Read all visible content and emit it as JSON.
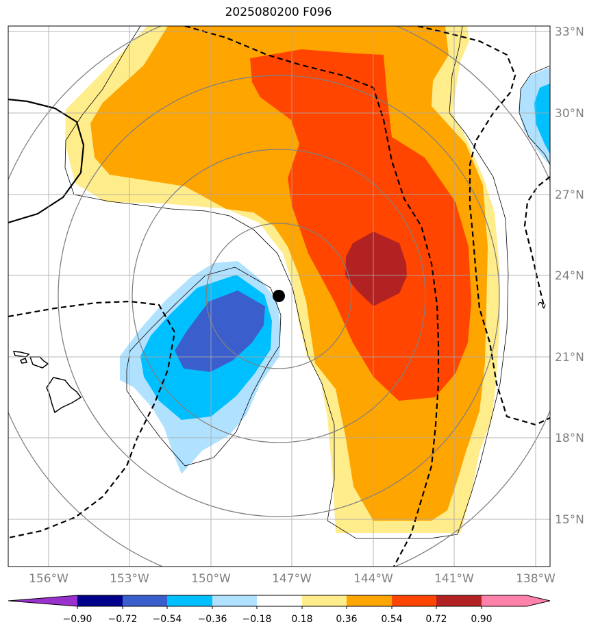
{
  "title": "2025080200 F096",
  "latitude_labels": [
    "33°N",
    "30°N",
    "27°N",
    "24°N",
    "21°N",
    "18°N",
    "15°N"
  ],
  "longitude_labels": [
    "156°W",
    "153°W",
    "150°W",
    "147°W",
    "144°W",
    "141°W",
    "138°W"
  ],
  "colorbar": {
    "ticks": [
      "−0.90",
      "−0.72",
      "−0.54",
      "−0.36",
      "−0.18",
      "0.18",
      "0.36",
      "0.54",
      "0.72",
      "0.90"
    ],
    "colors": [
      "#9932cc",
      "#00008b",
      "#3a5fcd",
      "#00bfff",
      "#b0e2ff",
      "#ffffff",
      "#ffec8b",
      "#ffa500",
      "#ff4500",
      "#b22222",
      "#ff82ab"
    ]
  },
  "fill_colors": {
    "light_yellow": "#ffec8b",
    "orange": "#ffa500",
    "orange_red": "#ff4500",
    "firebrick": "#b22222",
    "light_blue": "#b0e2ff",
    "deep_sky_blue": "#00bfff",
    "royal_blue": "#3a5fcd"
  },
  "storm_center": {
    "lat": 23.3,
    "lon": -147.5
  },
  "contour_label": "2"
}
